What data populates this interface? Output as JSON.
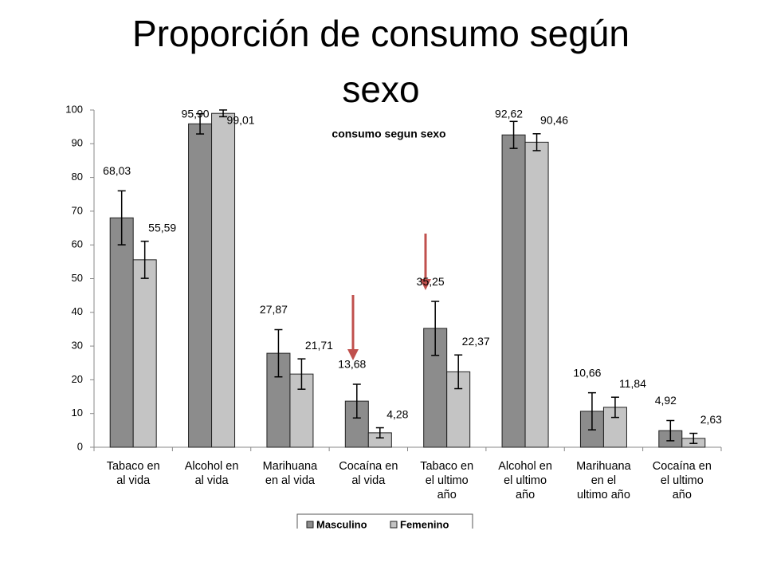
{
  "chart_data": {
    "type": "bar",
    "title": "Proporción de consumo según sexo",
    "subtitle": "consumo segun sexo",
    "categories": [
      "Tabaco en al vida",
      "Alcohol en al vida",
      "Marihuana en al vida",
      "Cocaína en al vida",
      "Tabaco en el ultimo año",
      "Alcohol en el ultimo año",
      "Marihuana en el ultimo año",
      "Cocaína en el ultimo año"
    ],
    "series": [
      {
        "name": "Masculino",
        "color": "#8c8c8c",
        "values": [
          68.03,
          95.9,
          27.87,
          13.68,
          35.25,
          92.62,
          10.66,
          4.92
        ],
        "value_labels": [
          "68,03",
          "95,90",
          "27,87",
          "13,68",
          "35,25",
          "92,62",
          "10,66",
          "4,92"
        ],
        "errors": [
          8,
          3,
          7,
          5,
          8,
          4,
          5.5,
          3
        ]
      },
      {
        "name": "Femenino",
        "color": "#c4c4c4",
        "values": [
          55.59,
          99.01,
          21.71,
          4.28,
          22.37,
          90.46,
          11.84,
          2.63
        ],
        "value_labels": [
          "55,59",
          "99,01",
          "21,71",
          "4,28",
          "22,37",
          "90,46",
          "11,84",
          "2,63"
        ],
        "errors": [
          5.5,
          1,
          4.5,
          1.5,
          5,
          2.5,
          3,
          1.5
        ]
      }
    ],
    "ylim": [
      0,
      100
    ],
    "yticks": [
      0,
      10,
      20,
      30,
      40,
      50,
      60,
      70,
      80,
      90,
      100
    ],
    "grid": false,
    "legend": "bottom"
  }
}
